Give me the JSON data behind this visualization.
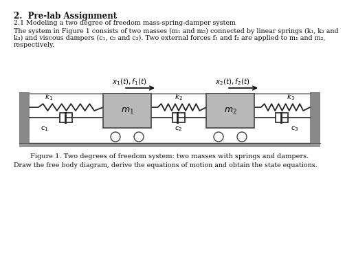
{
  "title": "2.  Pre-lab Assignment",
  "subtitle": "2.1 Modeling a two degree of freedom mass-spring-damper system",
  "body_line1": "The system in Figure 1 consists of two masses (m₁ and m₂) connected by linear springs (k₁, k₂ and",
  "body_line2": "k₃) and viscous dampers (c₁, c₂ and c₃). Two external forces f₁ and f₂ are applied to m₁ and m₂,",
  "body_line3": "respectively.",
  "caption": "Figure 1. Two degrees of freedom system: two masses with springs and dampers.",
  "bottom": "Draw the free body diagram, derive the equations of motion and obtain the state equations.",
  "bg_color": "#ffffff",
  "wall_color": "#888888",
  "mass_color": "#b8b8b8",
  "ground_color": "#999999",
  "text_color": "#111111"
}
